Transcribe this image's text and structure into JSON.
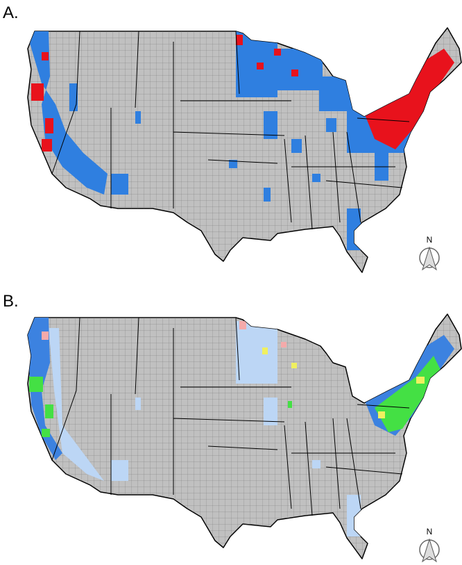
{
  "panels": [
    {
      "label": "A.",
      "north": "N"
    },
    {
      "label": "B.",
      "north": "N"
    }
  ]
}
